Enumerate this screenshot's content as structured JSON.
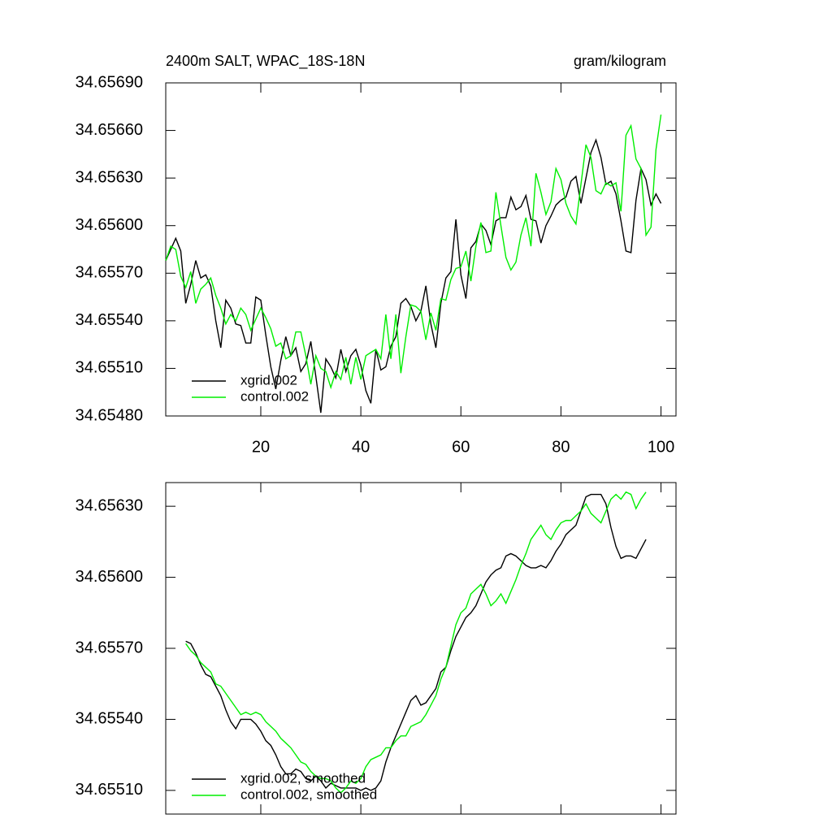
{
  "chart_data": [
    {
      "type": "line",
      "title": "2400m SALT, WPAC_18S-18N",
      "units": "gram/kilogram",
      "legend": "lower left",
      "xlim": [
        1,
        103
      ],
      "xticks": [
        20,
        40,
        60,
        80,
        100
      ],
      "ylim": [
        34.6548,
        34.6569
      ],
      "yticks": [
        {
          "value": 34.6548,
          "label": "34.65480"
        },
        {
          "value": 34.6551,
          "label": "34.65510"
        },
        {
          "value": 34.6554,
          "label": "34.65540"
        },
        {
          "value": 34.6557,
          "label": "34.65570"
        },
        {
          "value": 34.656,
          "label": "34.65600"
        },
        {
          "value": 34.6563,
          "label": "34.65630"
        },
        {
          "value": 34.6566,
          "label": "34.65660"
        },
        {
          "value": 34.6569,
          "label": "34.65690"
        }
      ],
      "x": [
        1,
        2,
        3,
        4,
        5,
        6,
        7,
        8,
        9,
        10,
        11,
        12,
        13,
        14,
        15,
        16,
        17,
        18,
        19,
        20,
        21,
        22,
        23,
        24,
        25,
        26,
        27,
        28,
        29,
        30,
        31,
        32,
        33,
        34,
        35,
        36,
        37,
        38,
        39,
        40,
        41,
        42,
        43,
        44,
        45,
        46,
        47,
        48,
        49,
        50,
        51,
        52,
        53,
        54,
        55,
        56,
        57,
        58,
        59,
        60,
        61,
        62,
        63,
        64,
        65,
        66,
        67,
        68,
        69,
        70,
        71,
        72,
        73,
        74,
        75,
        76,
        77,
        78,
        79,
        80,
        81,
        82,
        83,
        84,
        85,
        86,
        87,
        88,
        89,
        90,
        91,
        92,
        93,
        94,
        95,
        96,
        97,
        98,
        99,
        100
      ],
      "series": [
        {
          "name": "xgrid.002",
          "color": "#000000",
          "values": [
            34.65578,
            34.65585,
            34.65592,
            34.65584,
            34.65551,
            34.65563,
            34.65578,
            34.65567,
            34.65569,
            34.65562,
            34.6554,
            34.65523,
            34.65553,
            34.65548,
            34.65538,
            34.65537,
            34.65526,
            34.65526,
            34.65555,
            34.65553,
            34.65531,
            34.65511,
            34.65497,
            34.65515,
            34.6553,
            34.65518,
            34.65523,
            34.65508,
            34.65513,
            34.65527,
            34.65505,
            34.65482,
            34.65516,
            34.65511,
            34.65504,
            34.65522,
            34.65508,
            34.65518,
            34.65522,
            34.65512,
            34.65496,
            34.65488,
            34.65522,
            34.65509,
            34.65511,
            34.65524,
            34.6553,
            34.65551,
            34.65554,
            34.65549,
            34.6554,
            34.65546,
            34.65562,
            34.65538,
            34.65523,
            34.65551,
            34.65567,
            34.65571,
            34.65604,
            34.65569,
            34.65554,
            34.65586,
            34.6559,
            34.65601,
            34.65597,
            34.65588,
            34.65603,
            34.65605,
            34.65605,
            34.65618,
            34.6561,
            34.65612,
            34.65619,
            34.65604,
            34.65603,
            34.65589,
            34.656,
            34.65606,
            34.65613,
            34.65616,
            34.65618,
            34.65628,
            34.65631,
            34.65614,
            34.6563,
            34.65646,
            34.65654,
            34.65643,
            34.65626,
            34.65628,
            34.6562,
            34.65603,
            34.65584,
            34.65583,
            34.65616,
            34.65636,
            34.65629,
            34.65613,
            34.6562,
            34.65614
          ]
        },
        {
          "name": "control.002",
          "color": "#00ee00",
          "values": [
            34.65578,
            34.65587,
            34.65585,
            34.65568,
            34.65561,
            34.65571,
            34.65551,
            34.6556,
            34.65563,
            34.65567,
            34.65556,
            34.65548,
            34.65538,
            34.65544,
            34.6554,
            34.65548,
            34.65544,
            34.65534,
            34.65541,
            34.65548,
            34.65542,
            34.65535,
            34.65524,
            34.65526,
            34.65516,
            34.65518,
            34.65533,
            34.65533,
            34.65518,
            34.655,
            34.65518,
            34.6551,
            34.65508,
            34.65498,
            34.65508,
            34.65503,
            34.65517,
            34.655,
            34.65517,
            34.65503,
            34.65518,
            34.6552,
            34.65522,
            34.65516,
            34.65544,
            34.65516,
            34.65544,
            34.65507,
            34.6553,
            34.6555,
            34.65549,
            34.65546,
            34.65528,
            34.65545,
            34.65534,
            34.65554,
            34.65553,
            34.65566,
            34.65573,
            34.65574,
            34.65584,
            34.65565,
            34.65587,
            34.65602,
            34.65583,
            34.65584,
            34.65621,
            34.656,
            34.6558,
            34.65572,
            34.65577,
            34.65594,
            34.65605,
            34.65587,
            34.65633,
            34.65621,
            34.65607,
            34.65615,
            34.65636,
            34.65629,
            34.65614,
            34.65606,
            34.65601,
            34.65626,
            34.65651,
            34.65643,
            34.65622,
            34.6562,
            34.65627,
            34.65625,
            34.65627,
            34.65609,
            34.65657,
            34.65663,
            34.65642,
            34.65636,
            34.65594,
            34.65599,
            34.65648,
            34.6567
          ]
        }
      ]
    },
    {
      "type": "line",
      "legend": "lower left",
      "xlim": [
        1,
        103
      ],
      "ylim": [
        34.655,
        34.6564
      ],
      "yticks": [
        {
          "value": 34.6551,
          "label": "34.65510"
        },
        {
          "value": 34.6554,
          "label": "34.65540"
        },
        {
          "value": 34.6557,
          "label": "34.65570"
        },
        {
          "value": 34.656,
          "label": "34.65600"
        },
        {
          "value": 34.6563,
          "label": "34.65630"
        }
      ],
      "x": [
        5,
        6,
        7,
        8,
        9,
        10,
        11,
        12,
        13,
        14,
        15,
        16,
        17,
        18,
        19,
        20,
        21,
        22,
        23,
        24,
        25,
        26,
        27,
        28,
        29,
        30,
        31,
        32,
        33,
        34,
        35,
        36,
        37,
        38,
        39,
        40,
        41,
        42,
        43,
        44,
        45,
        46,
        47,
        48,
        49,
        50,
        51,
        52,
        53,
        54,
        55,
        56,
        57,
        58,
        59,
        60,
        61,
        62,
        63,
        64,
        65,
        66,
        67,
        68,
        69,
        70,
        71,
        72,
        73,
        74,
        75,
        76,
        77,
        78,
        79,
        80,
        81,
        82,
        83,
        84,
        85,
        86,
        87,
        88,
        89,
        90,
        91,
        92,
        93,
        94,
        95,
        96,
        97
      ],
      "series": [
        {
          "name": "xgrid.002, smoothed",
          "color": "#000000",
          "values": [
            34.65573,
            34.65572,
            34.65568,
            34.65563,
            34.65559,
            34.65558,
            34.65554,
            34.6555,
            34.65544,
            34.65539,
            34.65536,
            34.6554,
            34.6554,
            34.6554,
            34.65538,
            34.65535,
            34.65531,
            34.65529,
            34.65525,
            34.6552,
            34.65517,
            34.65517,
            34.65519,
            34.65518,
            34.65515,
            34.65514,
            34.65516,
            34.65514,
            34.65511,
            34.65513,
            34.65512,
            34.65511,
            34.65511,
            34.65511,
            34.65511,
            34.6551,
            34.65511,
            34.6551,
            34.65511,
            34.65514,
            34.65522,
            34.65528,
            34.65533,
            34.65538,
            34.65543,
            34.65548,
            34.6555,
            34.65546,
            34.65547,
            34.6555,
            34.65553,
            34.6556,
            34.65562,
            34.65569,
            34.65575,
            34.65579,
            34.65583,
            34.65585,
            34.65588,
            34.65593,
            34.65598,
            34.65601,
            34.65603,
            34.65604,
            34.65609,
            34.6561,
            34.65609,
            34.65607,
            34.65605,
            34.65604,
            34.65604,
            34.65605,
            34.65604,
            34.65607,
            34.65611,
            34.65614,
            34.65618,
            34.6562,
            34.65622,
            34.65628,
            34.65634,
            34.65635,
            34.65635,
            34.65635,
            34.65631,
            34.65621,
            34.65613,
            34.65608,
            34.65609,
            34.65609,
            34.65608,
            34.65612,
            34.65616
          ]
        },
        {
          "name": "control.002, smoothed",
          "color": "#00ee00",
          "values": [
            34.65572,
            34.65569,
            34.65567,
            34.65564,
            34.65562,
            34.6556,
            34.65555,
            34.65554,
            34.65551,
            34.65548,
            34.65545,
            34.65542,
            34.65543,
            34.65542,
            34.65543,
            34.65542,
            34.65539,
            34.65537,
            34.65535,
            34.65532,
            34.6553,
            34.65528,
            34.65525,
            34.65522,
            34.65521,
            34.65518,
            34.65516,
            34.65515,
            34.65515,
            34.65514,
            34.65511,
            34.65509,
            34.65511,
            34.65514,
            34.65513,
            34.65515,
            34.6552,
            34.65523,
            34.65524,
            34.65525,
            34.65528,
            34.65528,
            34.65531,
            34.65533,
            34.65533,
            34.65537,
            34.65538,
            34.65539,
            34.65542,
            34.65546,
            34.6555,
            34.65557,
            34.65562,
            34.65571,
            34.6558,
            34.65585,
            34.65587,
            34.65593,
            34.65595,
            34.65597,
            34.65593,
            34.65588,
            34.6559,
            34.65593,
            34.65589,
            34.65594,
            34.65599,
            34.65605,
            34.6561,
            34.65616,
            34.65619,
            34.65622,
            34.65618,
            34.65616,
            34.6562,
            34.65623,
            34.65624,
            34.65624,
            34.65626,
            34.65628,
            34.65631,
            34.65627,
            34.65625,
            34.65623,
            34.65628,
            34.65633,
            34.65635,
            34.65633,
            34.65636,
            34.65635,
            34.65629,
            34.65633,
            34.65636
          ]
        }
      ]
    }
  ]
}
